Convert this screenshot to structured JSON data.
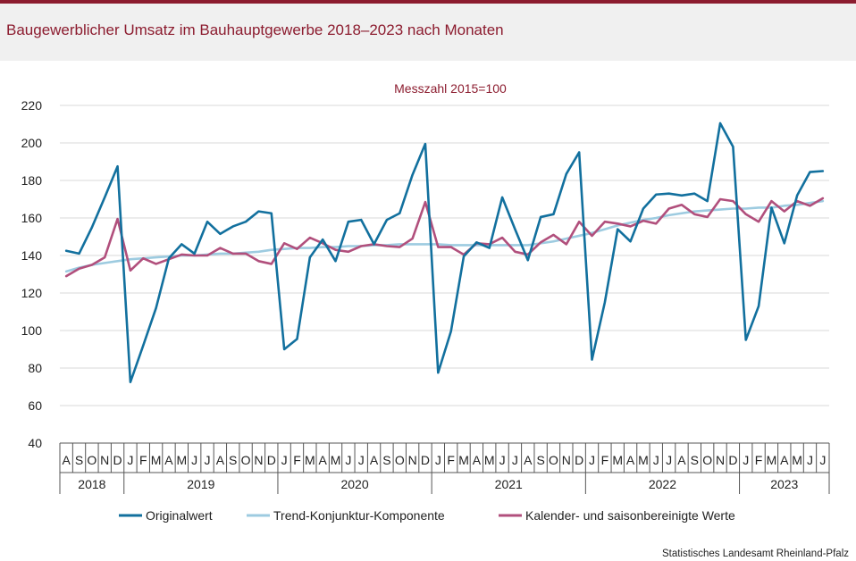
{
  "header": {
    "title": "Baugewerblicher Umsatz im Bauhauptgewerbe 2018–2023 nach Monaten"
  },
  "footer": {
    "source": "Statistisches Landesamt Rheinland-Pfalz"
  },
  "colors": {
    "accent": "#8c1c2f",
    "originalwert": "#12709e",
    "trend": "#9dcbe0",
    "saison": "#b14f7c"
  },
  "chart_data": {
    "type": "line",
    "subtitle": "Messzahl 2015=100",
    "ylim": [
      40,
      220
    ],
    "yticks": [
      40,
      60,
      80,
      100,
      120,
      140,
      160,
      180,
      200,
      220
    ],
    "grid": true,
    "legend_position": "bottom",
    "x": [
      "A",
      "S",
      "O",
      "N",
      "D",
      "J",
      "F",
      "M",
      "A",
      "M",
      "J",
      "J",
      "A",
      "S",
      "O",
      "N",
      "D",
      "J",
      "F",
      "M",
      "A",
      "M",
      "J",
      "J",
      "A",
      "S",
      "O",
      "N",
      "D",
      "J",
      "F",
      "M",
      "A",
      "M",
      "J",
      "J",
      "A",
      "S",
      "O",
      "N",
      "D",
      "J",
      "F",
      "M",
      "A",
      "M",
      "J",
      "J",
      "A",
      "S",
      "O",
      "N",
      "D",
      "J",
      "F",
      "M",
      "A",
      "M",
      "J",
      "J"
    ],
    "years": [
      {
        "label": "2018",
        "start": 0,
        "count": 5
      },
      {
        "label": "2019",
        "start": 5,
        "count": 12
      },
      {
        "label": "2020",
        "start": 17,
        "count": 12
      },
      {
        "label": "2021",
        "start": 29,
        "count": 12
      },
      {
        "label": "2022",
        "start": 41,
        "count": 12
      },
      {
        "label": "2023",
        "start": 53,
        "count": 7
      }
    ],
    "series": [
      {
        "name": "Originalwert",
        "color": "#12709e",
        "values": [
          142.5,
          141,
          155,
          171,
          187.5,
          72.5,
          92,
          112,
          138.5,
          146,
          141,
          158,
          151.5,
          155.5,
          158,
          163.5,
          162.5,
          90,
          95.5,
          139,
          148.5,
          137,
          158,
          159,
          146,
          159,
          162.5,
          183,
          199.5,
          77.5,
          99.5,
          139.5,
          147,
          144,
          171,
          154,
          137.5,
          160.5,
          162,
          183.5,
          195,
          84.5,
          115,
          154,
          147.5,
          165,
          172.5,
          173,
          172,
          173,
          169,
          210.5,
          198,
          95,
          113,
          165.5,
          146.5,
          172,
          184.5,
          185
        ]
      },
      {
        "name": "Trend-Konjunktur-Komponente",
        "color": "#9dcbe0",
        "values": [
          131.5,
          133.5,
          135,
          136,
          137,
          138,
          138.5,
          139,
          139.5,
          140,
          140,
          140.5,
          141,
          141,
          141.5,
          142,
          143,
          143.5,
          144,
          144,
          144.5,
          144.5,
          145,
          145,
          145.5,
          145.5,
          146,
          146,
          146,
          146,
          145.5,
          145.5,
          145.5,
          145.5,
          145.5,
          145.5,
          145.5,
          146.5,
          147.5,
          149,
          150.5,
          152,
          154,
          156,
          157.5,
          159,
          160,
          161.5,
          162.5,
          163.5,
          164,
          164.5,
          165,
          165,
          165.5,
          165.5,
          166.5,
          167,
          168,
          169
        ]
      },
      {
        "name": "Kalender- und saisonbereinigte Werte",
        "color": "#b14f7c",
        "values": [
          129,
          133,
          135,
          139,
          159.5,
          132,
          138.5,
          135.5,
          138,
          140.5,
          140,
          140,
          144,
          141,
          141,
          137,
          135.5,
          146.5,
          143.5,
          149.5,
          146.5,
          143,
          142,
          145,
          146,
          145,
          144.5,
          149,
          168.5,
          144.5,
          144.5,
          140.5,
          146.5,
          146,
          149.5,
          142,
          140.5,
          147,
          151,
          146,
          158,
          150.5,
          158,
          157,
          155.5,
          158.5,
          157,
          165,
          167,
          162,
          160.5,
          170,
          169,
          162,
          158,
          169,
          163.5,
          169,
          166.5,
          170.5
        ]
      }
    ]
  }
}
